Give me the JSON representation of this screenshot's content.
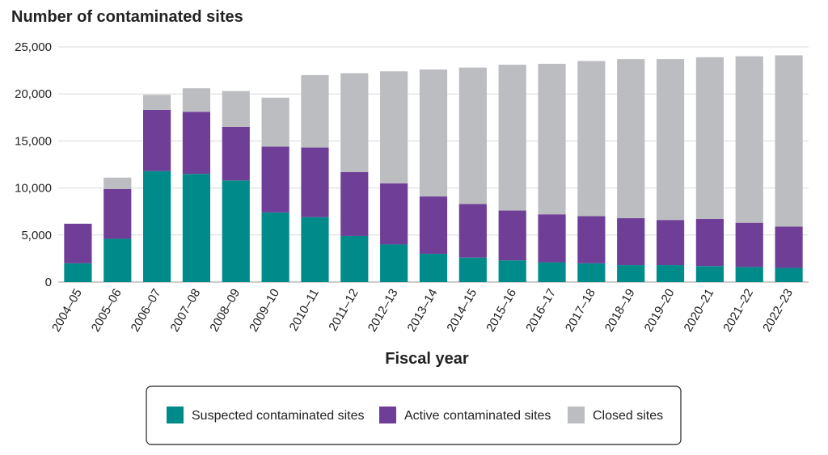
{
  "chart_data": {
    "type": "bar",
    "stacked": true,
    "title": "Number of contaminated sites",
    "xlabel": "Fiscal year",
    "ylabel": "",
    "ylim": [
      0,
      25000
    ],
    "yticks": [
      0,
      5000,
      10000,
      15000,
      20000,
      25000
    ],
    "ytick_labels": [
      "0",
      "5,000",
      "10,000",
      "15,000",
      "20,000",
      "25,000"
    ],
    "grid": "horizontal",
    "legend_position": "bottom",
    "categories": [
      "2004–05",
      "2005–06",
      "2006–07",
      "2007–08",
      "2008–09",
      "2009–10",
      "2010–11",
      "2011–12",
      "2012–13",
      "2013–14",
      "2014–15",
      "2015–16",
      "2016–17",
      "2017–18",
      "2018–19",
      "2019–20",
      "2020–21",
      "2021–22",
      "2022–23"
    ],
    "series": [
      {
        "name": "Suspected contaminated sites",
        "color": "#008b8b",
        "values": [
          2000,
          4600,
          11800,
          11500,
          10800,
          7400,
          6900,
          4900,
          4000,
          3000,
          2600,
          2300,
          2100,
          2000,
          1800,
          1800,
          1700,
          1600,
          1500
        ]
      },
      {
        "name": "Active contaminated sites",
        "color": "#6f3f98",
        "values": [
          4200,
          5300,
          6500,
          6600,
          5700,
          7000,
          7400,
          6800,
          6500,
          6100,
          5700,
          5300,
          5100,
          5000,
          5000,
          4800,
          5000,
          4700,
          4400
        ]
      },
      {
        "name": "Closed sites",
        "color": "#bcbdc0",
        "values": [
          0,
          1200,
          1600,
          2500,
          3800,
          5200,
          7700,
          10500,
          11900,
          13500,
          14500,
          15500,
          16000,
          16500,
          16900,
          17100,
          17200,
          17700,
          18200
        ]
      }
    ]
  }
}
